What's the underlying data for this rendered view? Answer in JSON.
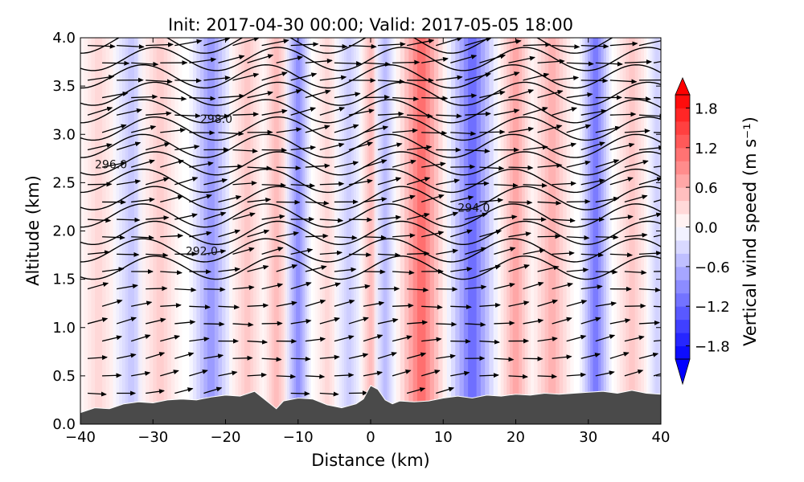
{
  "chart_data": {
    "type": "contour-section",
    "title": "Init: 2017-04-30 00:00; Valid: 2017-05-05 18:00",
    "xlabel": "Distance (km)",
    "ylabel": "Altitude (km)",
    "xlim": [
      -40,
      40
    ],
    "ylim": [
      0.0,
      4.0
    ],
    "xticks": [
      -40,
      -30,
      -20,
      -10,
      0,
      10,
      20,
      30,
      40
    ],
    "xtick_labels": [
      "−40",
      "−30",
      "−20",
      "−10",
      "0",
      "10",
      "20",
      "30",
      "40"
    ],
    "yticks": [
      0.0,
      0.5,
      1.0,
      1.5,
      2.0,
      2.5,
      3.0,
      3.5,
      4.0
    ],
    "ytick_labels": [
      "0.0",
      "0.5",
      "1.0",
      "1.5",
      "2.0",
      "2.5",
      "3.0",
      "3.5",
      "4.0"
    ],
    "colorbar": {
      "label": "Vertical wind speed (m s⁻¹)",
      "range": [
        -2.0,
        2.0
      ],
      "ticks": [
        1.8,
        1.2,
        0.6,
        0.0,
        -0.6,
        -1.2,
        -1.8
      ],
      "tick_labels": [
        "1.8",
        "1.2",
        "0.6",
        "0.0",
        "−0.6",
        "−1.2",
        "−1.8"
      ],
      "colormap": "bwr",
      "negative_color": "#0000ff",
      "positive_color": "#ff0000"
    },
    "terrain": {
      "x": [
        -40,
        -38,
        -36,
        -34,
        -32,
        -30,
        -28,
        -26,
        -24,
        -22,
        -20,
        -18,
        -16,
        -14,
        -13,
        -12,
        -10,
        -8,
        -6,
        -4,
        -2,
        -1,
        0,
        1,
        2,
        3,
        4,
        6,
        8,
        10,
        12,
        14,
        16,
        18,
        20,
        22,
        24,
        26,
        28,
        30,
        32,
        34,
        36,
        38,
        40
      ],
      "z": [
        0.12,
        0.17,
        0.16,
        0.21,
        0.23,
        0.22,
        0.25,
        0.26,
        0.25,
        0.28,
        0.3,
        0.29,
        0.34,
        0.22,
        0.16,
        0.24,
        0.27,
        0.26,
        0.2,
        0.17,
        0.21,
        0.26,
        0.4,
        0.36,
        0.25,
        0.21,
        0.24,
        0.23,
        0.24,
        0.27,
        0.29,
        0.27,
        0.3,
        0.29,
        0.31,
        0.3,
        0.32,
        0.31,
        0.32,
        0.33,
        0.34,
        0.32,
        0.35,
        0.32,
        0.31
      ],
      "color": "#4a4a4a"
    },
    "w_bands": [
      {
        "x": -37.5,
        "w": 0.35,
        "width": 3.0
      },
      {
        "x": -33,
        "w": -0.5,
        "width": 2.5
      },
      {
        "x": -29,
        "w": 0.45,
        "width": 3.0
      },
      {
        "x": -22,
        "w": -0.9,
        "width": 3.0
      },
      {
        "x": -17,
        "w": 0.5,
        "width": 2.5
      },
      {
        "x": -13,
        "w": 0.6,
        "width": 2.0
      },
      {
        "x": -10,
        "w": -1.0,
        "width": 1.8
      },
      {
        "x": -6,
        "w": 0.35,
        "width": 2.0
      },
      {
        "x": -3,
        "w": -0.45,
        "width": 2.0
      },
      {
        "x": 0,
        "w": 0.6,
        "width": 1.5
      },
      {
        "x": 2,
        "w": -0.6,
        "width": 1.5
      },
      {
        "x": 7,
        "w": 1.3,
        "width": 3.5
      },
      {
        "x": 14,
        "w": -1.3,
        "width": 3.5
      },
      {
        "x": 20,
        "w": 0.8,
        "width": 2.5
      },
      {
        "x": 25,
        "w": 0.7,
        "width": 3.0
      },
      {
        "x": 31,
        "w": -1.2,
        "width": 2.2
      },
      {
        "x": 36,
        "w": 0.5,
        "width": 2.5
      },
      {
        "x": 39.5,
        "w": -0.4,
        "width": 1.5
      }
    ],
    "isentropes": {
      "base_levels_km": [
        1.62,
        1.8,
        1.98,
        2.16,
        2.34,
        2.52,
        2.7,
        2.88,
        3.06,
        3.24,
        3.42,
        3.6,
        3.78,
        3.96
      ],
      "wave_amplitude_km": 0.12,
      "wavelength_km": 17,
      "labels": [
        {
          "text": "292.0",
          "x": -25.5,
          "y": 1.75
        },
        {
          "text": "294.0",
          "x": 12,
          "y": 2.2
        },
        {
          "text": "296.0",
          "x": -38,
          "y": 2.65
        },
        {
          "text": "298.0",
          "x": -23.5,
          "y": 3.12
        }
      ]
    },
    "wind_vectors": {
      "x": [
        -39,
        -35,
        -31,
        -27,
        -23,
        -19,
        -15,
        -11,
        -7,
        -3,
        1,
        5,
        9,
        13,
        17,
        21,
        25,
        29,
        33,
        37
      ],
      "z": [
        0.32,
        0.5,
        0.68,
        0.86,
        1.04,
        1.22,
        1.4,
        1.58,
        1.76,
        1.94,
        2.12,
        2.3,
        2.48,
        2.66,
        2.84,
        3.02,
        3.2,
        3.38,
        3.56,
        3.74,
        3.92
      ]
    }
  }
}
